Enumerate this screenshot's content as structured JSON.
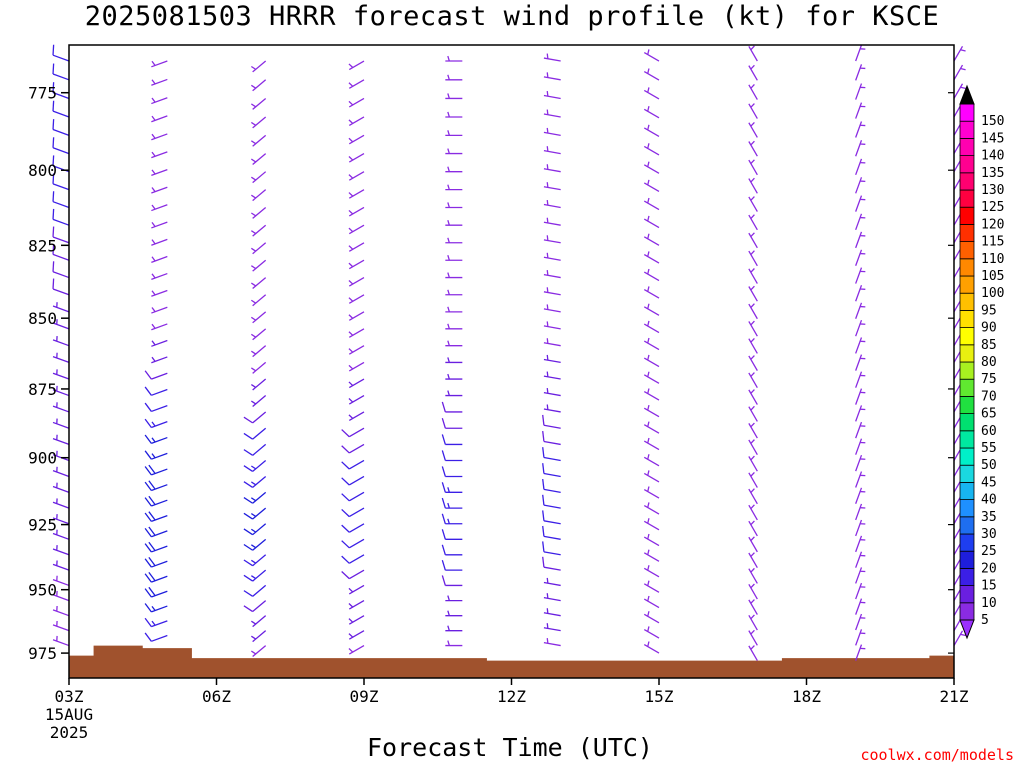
{
  "title": "2025081503 HRRR forecast wind profile (kt) for KSCE",
  "xlabel": "Forecast Time (UTC)",
  "credit": "coolwx.com/models",
  "chart_data": {
    "type": "wind-barb-time-height",
    "y_axis": {
      "unit": "hPa",
      "reversed": true,
      "range": [
        760,
        985
      ],
      "ticks": [
        775,
        800,
        825,
        850,
        875,
        900,
        925,
        950,
        975
      ]
    },
    "x_axis": {
      "range_hours": [
        3,
        21
      ],
      "ticks": [
        {
          "hour": 3,
          "label": [
            "03Z",
            "15AUG",
            "2025"
          ]
        },
        {
          "hour": 6,
          "label": [
            "06Z"
          ]
        },
        {
          "hour": 9,
          "label": [
            "09Z"
          ]
        },
        {
          "hour": 12,
          "label": [
            "12Z"
          ]
        },
        {
          "hour": 15,
          "label": [
            "15Z"
          ]
        },
        {
          "hour": 18,
          "label": [
            "18Z"
          ]
        },
        {
          "hour": 21,
          "label": [
            "21Z"
          ]
        }
      ]
    },
    "colorbar": {
      "values": [
        5,
        10,
        15,
        20,
        25,
        30,
        35,
        40,
        45,
        50,
        55,
        60,
        65,
        70,
        75,
        80,
        85,
        90,
        95,
        100,
        105,
        110,
        115,
        120,
        125,
        130,
        135,
        140,
        145,
        150
      ],
      "colors": [
        "#8a2be2",
        "#6a1fe0",
        "#3b1fe6",
        "#1e1edc",
        "#1e3ef0",
        "#1e6ef0",
        "#1e90ff",
        "#17b5f0",
        "#1ad8e0",
        "#00f0c8",
        "#00e8a0",
        "#00e070",
        "#20e040",
        "#60e830",
        "#a8f020",
        "#e8f010",
        "#ffff00",
        "#ffe000",
        "#ffc000",
        "#ffa000",
        "#ff8800",
        "#ff6000",
        "#ff3000",
        "#ff0000",
        "#ff0040",
        "#ff0070",
        "#ff0090",
        "#ff00b0",
        "#ff00d0",
        "#ff00ff"
      ],
      "low_arrow_color": "#9b30ff",
      "high_arrow_color": "#000000"
    },
    "terrain_color": "#a0522d",
    "terrain": [
      {
        "hour": 3.0,
        "p": 976
      },
      {
        "hour": 3.5,
        "p": 972
      },
      {
        "hour": 4.5,
        "p": 973
      },
      {
        "hour": 5.5,
        "p": 977
      },
      {
        "hour": 11.5,
        "p": 978
      },
      {
        "hour": 17.5,
        "p": 977
      },
      {
        "hour": 20.5,
        "p": 976
      },
      {
        "hour": 21.0,
        "p": 976
      }
    ],
    "series": [
      {
        "hour": 3.0,
        "p_top": 765,
        "p_bot": 972,
        "dir": 290,
        "speed": [
          12,
          12,
          12,
          12,
          12,
          12,
          12,
          12,
          12,
          12,
          10,
          10,
          10,
          10,
          9,
          9,
          8,
          8,
          8,
          7,
          7,
          7,
          7,
          7,
          7,
          7,
          7,
          7,
          6,
          6,
          6,
          5,
          5,
          5,
          5,
          5
        ]
      },
      {
        "hour": 5.0,
        "p_top": 765,
        "p_bot": 968,
        "dir": 250,
        "speed": [
          5,
          5,
          5,
          5,
          5,
          5,
          5,
          5,
          5,
          5,
          5,
          5,
          5,
          5,
          5,
          5,
          7,
          8,
          10,
          12,
          14,
          15,
          17,
          18,
          20,
          20,
          20,
          20,
          20,
          20,
          20,
          20,
          20,
          18,
          15,
          12
        ]
      },
      {
        "hour": 7.0,
        "p_top": 765,
        "p_bot": 972,
        "dir": 230,
        "speed": [
          5,
          5,
          5,
          5,
          5,
          5,
          5,
          5,
          5,
          5,
          5,
          5,
          5,
          5,
          5,
          5,
          5,
          5,
          7,
          8,
          10,
          12,
          13,
          15,
          15,
          17,
          17,
          17,
          17,
          15,
          15,
          12,
          10,
          8,
          6,
          5
        ]
      },
      {
        "hour": 9.0,
        "p_top": 765,
        "p_bot": 972,
        "dir": 240,
        "speed": [
          5,
          5,
          5,
          5,
          5,
          5,
          5,
          5,
          5,
          5,
          5,
          5,
          5,
          5,
          5,
          5,
          5,
          5,
          7,
          8,
          9,
          10,
          10,
          12,
          13,
          14,
          14,
          14,
          13,
          12,
          10,
          9,
          8,
          7,
          6,
          5
        ]
      },
      {
        "hour": 11.0,
        "p_top": 765,
        "p_bot": 972,
        "dir": 270,
        "speed": [
          5,
          5,
          5,
          5,
          5,
          5,
          5,
          5,
          5,
          5,
          5,
          5,
          5,
          5,
          5,
          5,
          5,
          7,
          8,
          9,
          10,
          10,
          12,
          13,
          14,
          15,
          15,
          15,
          14,
          13,
          12,
          10,
          9,
          8,
          7,
          5
        ]
      },
      {
        "hour": 13.0,
        "p_top": 765,
        "p_bot": 972,
        "dir": 280,
        "speed": [
          5,
          5,
          5,
          5,
          5,
          5,
          5,
          5,
          5,
          5,
          5,
          5,
          5,
          5,
          5,
          5,
          5,
          6,
          7,
          8,
          9,
          10,
          10,
          11,
          12,
          12,
          12,
          12,
          12,
          11,
          10,
          9,
          8,
          7,
          6,
          5
        ]
      },
      {
        "hour": 15.0,
        "p_top": 765,
        "p_bot": 975,
        "dir": 300,
        "speed": [
          5,
          5,
          5,
          5,
          5,
          5,
          5,
          5,
          5,
          5,
          5,
          5,
          5,
          5,
          5,
          5,
          5,
          5,
          5,
          5,
          5,
          5,
          5,
          5,
          5,
          5,
          5,
          5,
          5,
          5,
          5,
          5,
          5,
          5,
          5,
          5
        ]
      },
      {
        "hour": 17.0,
        "p_top": 765,
        "p_bot": 978,
        "dir": 330,
        "speed": [
          5,
          5,
          5,
          5,
          5,
          5,
          5,
          5,
          5,
          5,
          5,
          5,
          5,
          5,
          5,
          5,
          5,
          5,
          5,
          5,
          5,
          5,
          5,
          5,
          5,
          5,
          5,
          5,
          5,
          5,
          5,
          5,
          5,
          5,
          5,
          5
        ]
      },
      {
        "hour": 19.0,
        "p_top": 765,
        "p_bot": 978,
        "dir": 20,
        "speed": [
          5,
          5,
          5,
          5,
          5,
          5,
          5,
          5,
          5,
          5,
          5,
          5,
          5,
          5,
          5,
          5,
          5,
          5,
          5,
          5,
          5,
          5,
          5,
          5,
          5,
          5,
          5,
          5,
          5,
          5,
          5,
          5,
          5,
          5,
          5,
          5
        ]
      },
      {
        "hour": 21.0,
        "p_top": 765,
        "p_bot": 972,
        "dir": 30,
        "speed": [
          5,
          5,
          5,
          5,
          5,
          5,
          5,
          5,
          5,
          5,
          5,
          5,
          5,
          5,
          5,
          5,
          5,
          5,
          5,
          5,
          5,
          5,
          5,
          5,
          5,
          5,
          5,
          5,
          5,
          5,
          5,
          5,
          5,
          5,
          5,
          5
        ]
      }
    ]
  }
}
